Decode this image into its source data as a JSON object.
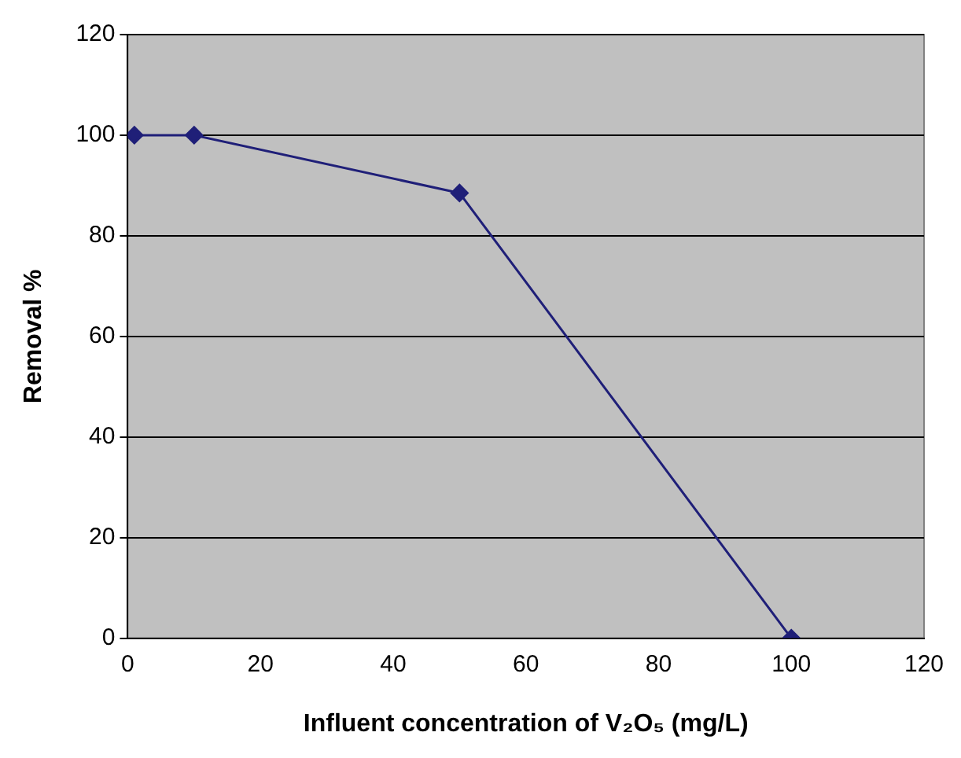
{
  "chart_data": {
    "type": "line",
    "xlabel": "Influent concentration of V₂O₅ (mg/L)",
    "ylabel": "Removal %",
    "x": [
      1,
      10,
      50,
      100
    ],
    "series": [
      {
        "color": "#1f1f78",
        "values": [
          100,
          100,
          88.5,
          0
        ]
      }
    ],
    "xlim": [
      0,
      120
    ],
    "xticks": [
      0,
      20,
      40,
      60,
      80,
      100,
      120
    ],
    "ylim": [
      0,
      120
    ],
    "yticks": [
      0,
      20,
      40,
      60,
      80,
      100,
      120
    ],
    "grid": "y",
    "legend": false,
    "marker": "diamond",
    "line_style": "solid"
  }
}
